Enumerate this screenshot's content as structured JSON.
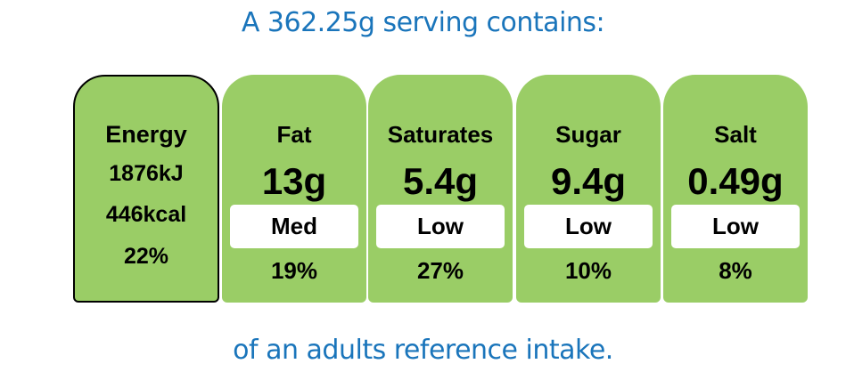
{
  "header": "A 362.25g serving contains:",
  "footer": "of an adults reference intake.",
  "energy": {
    "label": "Energy",
    "kj": "1876kJ",
    "kcal": "446kcal",
    "percent": "22%"
  },
  "nutrients": [
    {
      "name": "Fat",
      "amount": "13g",
      "level": "Med",
      "percent": "19%"
    },
    {
      "name": "Saturates",
      "amount": "5.4g",
      "level": "Low",
      "percent": "27%"
    },
    {
      "name": "Sugar",
      "amount": "9.4g",
      "level": "Low",
      "percent": "10%"
    },
    {
      "name": "Salt",
      "amount": "0.49g",
      "level": "Low",
      "percent": "8%"
    }
  ],
  "colors": {
    "card_green": "#9acd66",
    "heading_blue": "#1a75bb",
    "level_box": "#ffffff"
  }
}
